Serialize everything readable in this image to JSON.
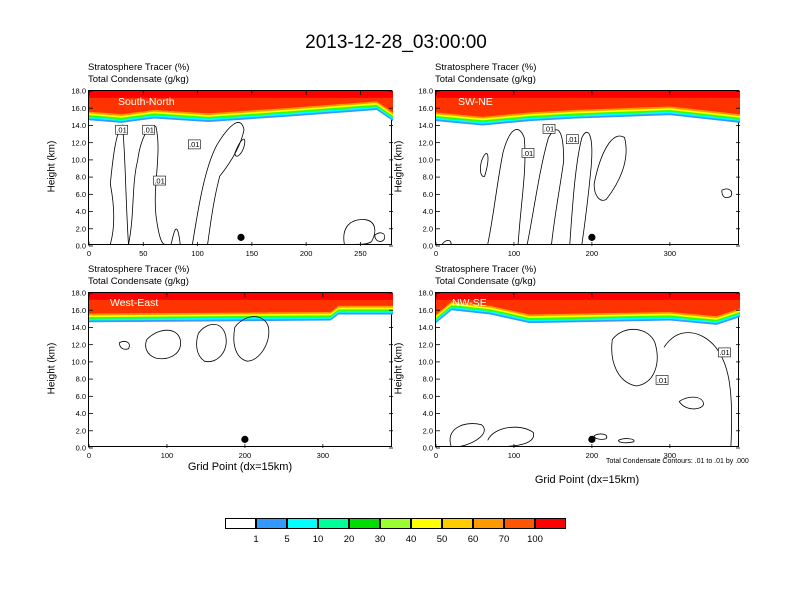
{
  "title": "2013-12-28_03:00:00",
  "heading_lines": [
    "Stratosphere Tracer   (%)",
    "Total Condensate   (g/kg)"
  ],
  "y_axis_label": "Height (km)",
  "x_axis_label": "Grid Point (dx=15km)",
  "contour_note": "Total Condensate Contours: .01 to .01 by .000",
  "colors": {
    "background": "#ffffff",
    "tracer_fill": "#ff3300",
    "tracer_top": "#ff0000",
    "tracer_band_1": "#ff9900",
    "tracer_band_2": "#ffff00",
    "tracer_band_3": "#33ff00",
    "tracer_band_4": "#00ffff",
    "tracer_band_5": "#3399ff",
    "contour": "#000000"
  },
  "colorbar": {
    "levels": [
      "1",
      "5",
      "10",
      "20",
      "30",
      "40",
      "50",
      "60",
      "70",
      "100"
    ],
    "colors": [
      "#ffffff",
      "#3399ff",
      "#00ffff",
      "#00ff99",
      "#00dd00",
      "#99ff33",
      "#ffff00",
      "#ffcc00",
      "#ff9900",
      "#ff5500",
      "#ff0000"
    ]
  },
  "chart_data": [
    {
      "type": "heatmap",
      "panel_label": "South-North",
      "xlim": [
        0,
        280
      ],
      "ylim": [
        0,
        18
      ],
      "x_ticks": [
        "0",
        "50",
        "100",
        "150",
        "200",
        "250"
      ],
      "x_tick_values": [
        0,
        50,
        100,
        150,
        200,
        250
      ],
      "y_ticks": [
        "0.0",
        "2.0",
        "4.0",
        "6.0",
        "8.0",
        "10.0",
        "12.0",
        "14.0",
        "16.0",
        "18.0"
      ],
      "contour_labels": [
        ".01",
        ".01",
        ".01",
        ".01"
      ],
      "contour_label_points": [
        [
          30,
          13.5
        ],
        [
          55,
          13.5
        ],
        [
          97,
          11.8
        ],
        [
          65,
          7.6
        ]
      ],
      "marker_point": [
        140,
        1.0
      ],
      "tropopause_km": [
        [
          0,
          15.6
        ],
        [
          30,
          15.3
        ],
        [
          60,
          15.8
        ],
        [
          110,
          15.4
        ],
        [
          180,
          16.0
        ],
        [
          265,
          16.8
        ],
        [
          280,
          15.5
        ]
      ]
    },
    {
      "type": "heatmap",
      "panel_label": "SW-NE",
      "xlim": [
        0,
        390
      ],
      "ylim": [
        0,
        18
      ],
      "x_ticks": [
        "0",
        "100",
        "200",
        "300"
      ],
      "x_tick_values": [
        0,
        100,
        200,
        300
      ],
      "y_ticks": [
        "0.0",
        "2.0",
        "4.0",
        "6.0",
        "8.0",
        "10.0",
        "12.0",
        "14.0",
        "16.0",
        "18.0"
      ],
      "contour_labels": [
        ".01",
        ".01",
        ".01"
      ],
      "contour_label_points": [
        [
          118,
          10.8
        ],
        [
          145,
          13.6
        ],
        [
          175,
          12.4
        ]
      ],
      "marker_point": [
        200,
        1.0
      ],
      "tropopause_km": [
        [
          0,
          15.5
        ],
        [
          60,
          15.0
        ],
        [
          120,
          15.5
        ],
        [
          180,
          15.8
        ],
        [
          300,
          16.2
        ],
        [
          390,
          15.3
        ]
      ]
    },
    {
      "type": "heatmap",
      "panel_label": "West-East",
      "xlim": [
        0,
        390
      ],
      "ylim": [
        0,
        18
      ],
      "x_ticks": [
        "0",
        "100",
        "200",
        "300"
      ],
      "x_tick_values": [
        0,
        100,
        200,
        300
      ],
      "y_ticks": [
        "0.0",
        "2.0",
        "4.0",
        "6.0",
        "8.0",
        "10.0",
        "12.0",
        "14.0",
        "16.0",
        "18.0"
      ],
      "contour_labels": [],
      "contour_label_points": [],
      "marker_point": [
        200,
        1.0
      ],
      "tropopause_km": [
        [
          0,
          15.6
        ],
        [
          310,
          15.8
        ],
        [
          320,
          16.5
        ],
        [
          390,
          16.5
        ]
      ]
    },
    {
      "type": "heatmap",
      "panel_label": "NW-SE",
      "xlim": [
        0,
        390
      ],
      "ylim": [
        0,
        18
      ],
      "x_ticks": [
        "0",
        "100",
        "200",
        "300"
      ],
      "x_tick_values": [
        0,
        100,
        200,
        300
      ],
      "y_ticks": [
        "0.0",
        "2.0",
        "4.0",
        "6.0",
        "8.0",
        "10.0",
        "12.0",
        "14.0",
        "16.0",
        "18.0"
      ],
      "contour_labels": [
        ".01",
        ".01"
      ],
      "contour_label_points": [
        [
          370,
          11.1
        ],
        [
          290,
          7.9
        ]
      ],
      "marker_point": [
        200,
        1.0
      ],
      "tropopause_km": [
        [
          0,
          15.5
        ],
        [
          20,
          17.0
        ],
        [
          70,
          16.5
        ],
        [
          120,
          15.5
        ],
        [
          300,
          15.8
        ],
        [
          360,
          15.3
        ],
        [
          390,
          16.2
        ]
      ]
    }
  ]
}
